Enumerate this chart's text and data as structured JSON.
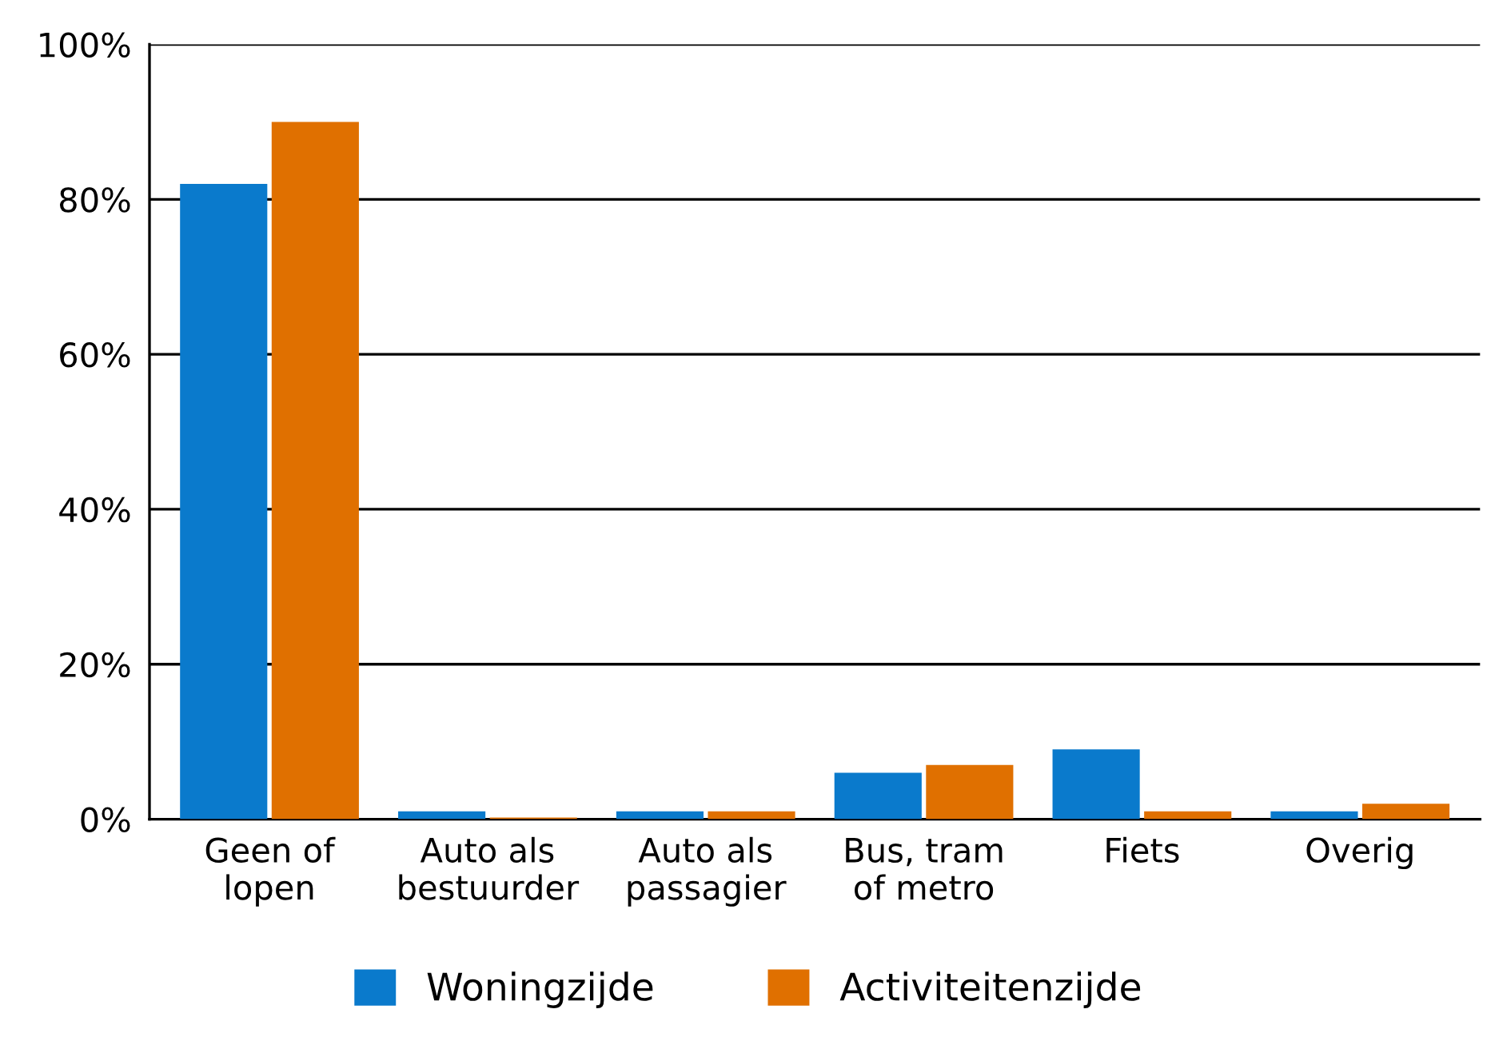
{
  "chart_data": {
    "type": "bar",
    "categories": [
      "Geen of\nlopen",
      "Auto als\nbestuurder",
      "Auto als\npassagier",
      "Bus, tram\nof metro",
      "Fiets",
      "Overig"
    ],
    "series": [
      {
        "name": "Woningzijde",
        "color": "#0a7acc",
        "values": [
          82,
          1,
          1,
          6,
          9,
          1
        ]
      },
      {
        "name": "Activiteitenzijde",
        "color": "#e07000",
        "values": [
          90,
          0.2,
          1,
          7,
          1,
          2
        ]
      }
    ],
    "ylim": [
      0,
      100
    ],
    "yticks": [
      {
        "value": 0,
        "label": "0%"
      },
      {
        "value": 20,
        "label": "20%"
      },
      {
        "value": 40,
        "label": "40%"
      },
      {
        "value": 60,
        "label": "60%"
      },
      {
        "value": 80,
        "label": "80%"
      },
      {
        "value": 100,
        "label": "100%"
      }
    ],
    "grid": "y",
    "legend": "bottom"
  }
}
